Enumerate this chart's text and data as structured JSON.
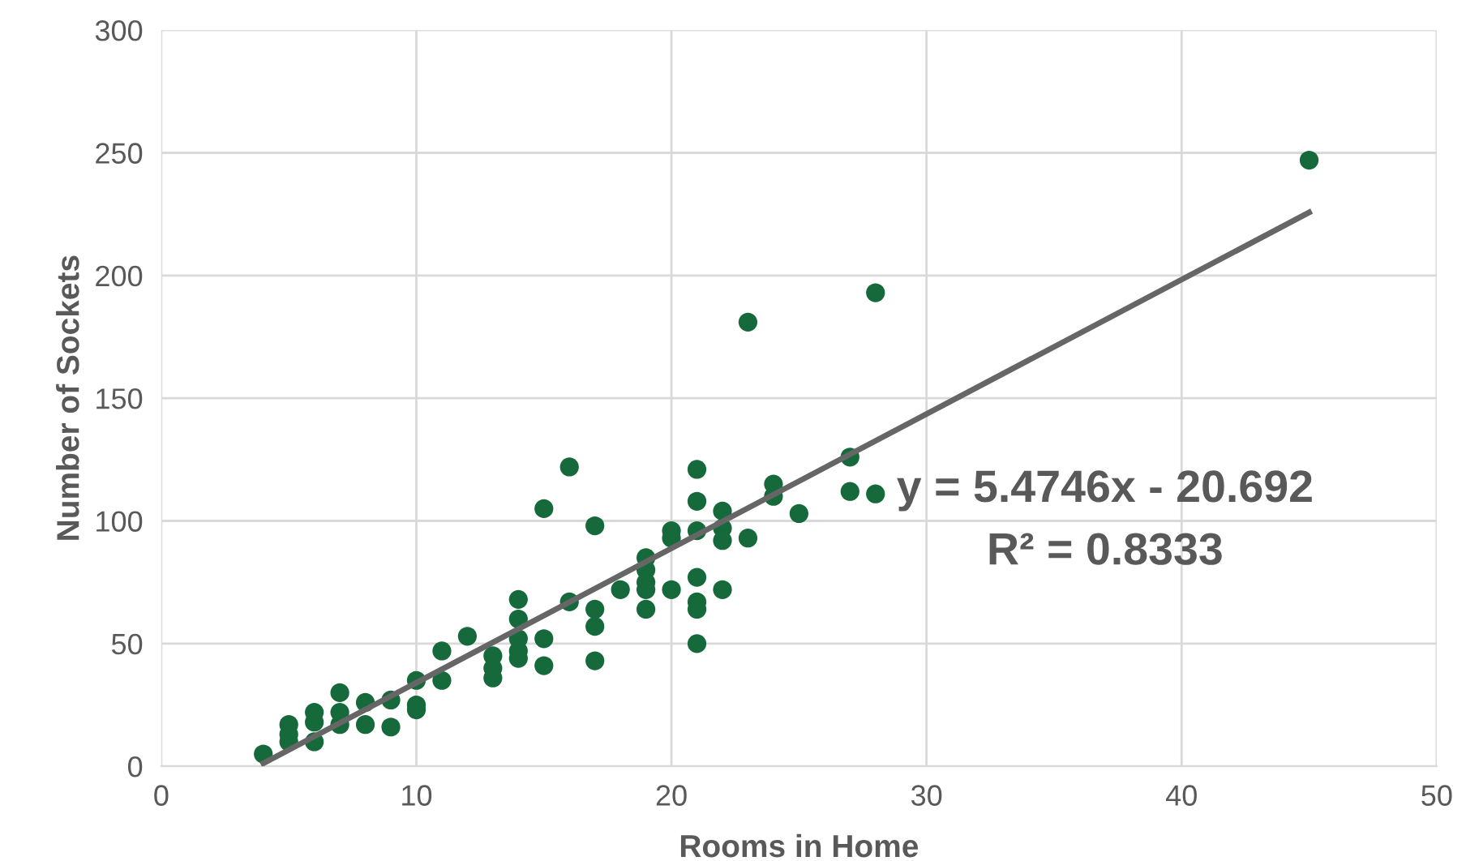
{
  "chart_data": {
    "type": "scatter",
    "xlabel": "Rooms in Home",
    "ylabel": "Number of Sockets",
    "xlim": [
      0,
      50
    ],
    "xticks": [
      0,
      10,
      20,
      30,
      40,
      50
    ],
    "ylim": [
      0,
      300
    ],
    "yticks": [
      0,
      50,
      100,
      150,
      200,
      250,
      300
    ],
    "grid": true,
    "marker": "circle",
    "series": [
      {
        "color": "#16693a",
        "x": [
          4,
          5,
          5,
          5,
          6,
          6,
          6,
          7,
          7,
          7,
          8,
          8,
          9,
          9,
          10,
          10,
          10,
          11,
          11,
          12,
          13,
          13,
          13,
          14,
          14,
          14,
          14,
          14,
          15,
          15,
          15,
          16,
          16,
          17,
          17,
          17,
          17,
          18,
          19,
          19,
          19,
          19,
          19,
          20,
          20,
          20,
          21,
          21,
          21,
          21,
          21,
          21,
          21,
          22,
          22,
          22,
          22,
          23,
          23,
          24,
          24,
          25,
          27,
          27,
          28,
          28,
          45
        ],
        "values": [
          5,
          17,
          13,
          10,
          22,
          18,
          10,
          30,
          22,
          17,
          26,
          17,
          27,
          16,
          35,
          25,
          23,
          47,
          35,
          53,
          45,
          40,
          36,
          68,
          60,
          52,
          47,
          44,
          105,
          52,
          41,
          122,
          67,
          98,
          64,
          57,
          43,
          72,
          85,
          80,
          75,
          72,
          64,
          96,
          93,
          72,
          121,
          108,
          96,
          77,
          67,
          64,
          50,
          104,
          97,
          92,
          72,
          181,
          93,
          115,
          110,
          103,
          126,
          112,
          193,
          111,
          247
        ]
      },
      {
        "type": "line",
        "color": "#666666",
        "marker": "none",
        "line_style": "solid",
        "x": [
          4,
          45
        ],
        "values": [
          1.2,
          225.7
        ]
      }
    ],
    "annotations": [
      "y = 5.4746x - 20.692",
      "R² = 0.8333"
    ]
  }
}
